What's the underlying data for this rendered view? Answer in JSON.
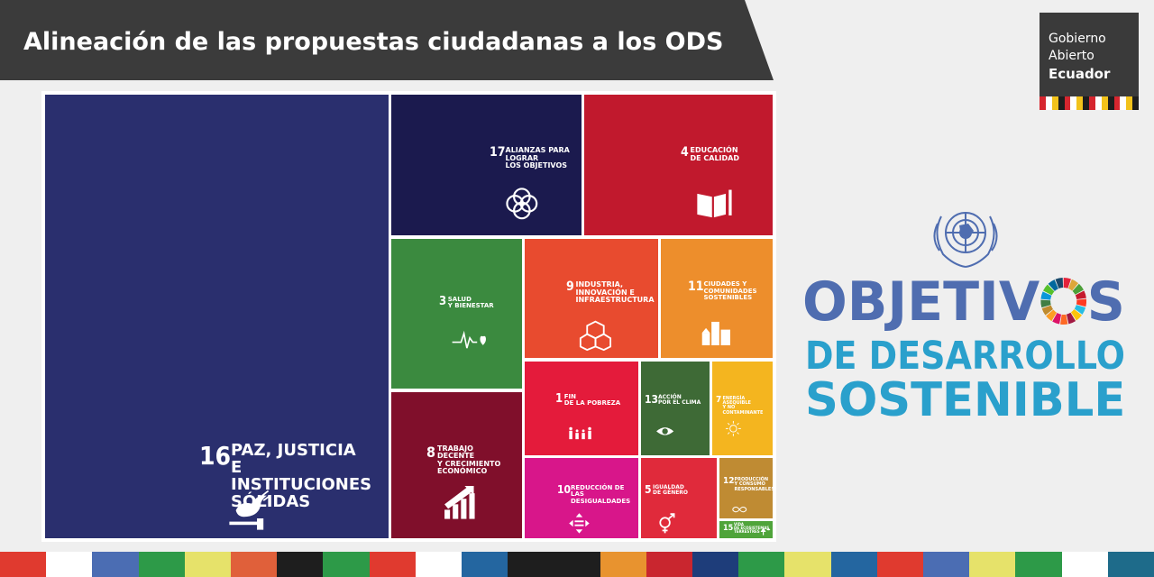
{
  "header": {
    "title": "Alineación de las propuestas ciudadanas a los ODS"
  },
  "logo": {
    "line1": "Gobierno",
    "line2": "Abierto",
    "line3": "Ecuador",
    "stripe_colors": [
      "#d6262f",
      "#ffffff",
      "#f2c21b",
      "#1e1e1e",
      "#d6262f",
      "#ffffff",
      "#f2c21b",
      "#1e1e1e",
      "#d6262f",
      "#ffffff",
      "#f2c21b",
      "#1e1e1e",
      "#d6262f",
      "#ffffff",
      "#f2c21b",
      "#1e1e1e"
    ]
  },
  "brand": {
    "line1_prefix": "OBJETIV",
    "line1_suffix": "S",
    "line2": "DE DESARROLLO",
    "line3": "SOSTENIBLE",
    "primary_color": "#4f6db0",
    "secondary_color": "#2aa0cc",
    "wheel_colors": [
      "#e5243b",
      "#dda63a",
      "#4c9f38",
      "#c5192d",
      "#ff3a21",
      "#26bde2",
      "#fcc30b",
      "#a21942",
      "#fd6925",
      "#dd1367",
      "#fd9d24",
      "#bf8b2e",
      "#3f7e44",
      "#0a97d9",
      "#56c02b",
      "#00689d",
      "#19486a"
    ]
  },
  "chart_data": {
    "type": "treemap",
    "tiles": [
      {
        "id": "t16",
        "number": "16",
        "label": "PAZ, JUSTICIA\nE INSTITUCIONES\nSÓLIDAS",
        "color": "#2a2f6e",
        "icon": "dove-gavel-icon"
      },
      {
        "id": "t17",
        "number": "17",
        "label": "ALIANZAS PARA\nLOGRAR\nLOS OBJETIVOS",
        "color": "#1b1a4e",
        "icon": "flower-rings-icon"
      },
      {
        "id": "t4",
        "number": "4",
        "label": "EDUCACIÓN\nDE CALIDAD",
        "color": "#c1192d",
        "icon": "book-pencil-icon"
      },
      {
        "id": "t3",
        "number": "3",
        "label": "SALUD\nY BIENESTAR",
        "color": "#3b8a3f",
        "icon": "heartbeat-icon"
      },
      {
        "id": "t9",
        "number": "9",
        "label": "INDUSTRIA,\nINNOVACIÓN E\nINFRAESTRUCTURA",
        "color": "#e84b2f",
        "icon": "cubes-icon"
      },
      {
        "id": "t11",
        "number": "11",
        "label": "CIUDADES Y\nCOMUNIDADES\nSOSTENIBLES",
        "color": "#ed8e2c",
        "icon": "city-icon"
      },
      {
        "id": "t8",
        "number": "8",
        "label": "TRABAJO DECENTE\nY CRECIMIENTO\nECONÓMICO",
        "color": "#800f2b",
        "icon": "growth-bars-icon"
      },
      {
        "id": "t1",
        "number": "1",
        "label": "FIN\nDE LA POBREZA",
        "color": "#e41b3b",
        "icon": "family-icon"
      },
      {
        "id": "t13",
        "number": "13",
        "label": "ACCIÓN\nPOR EL CLIMA",
        "color": "#3e6a36",
        "icon": "eye-globe-icon"
      },
      {
        "id": "t7",
        "number": "7",
        "label": "ENERGÍA ASEQUIBLE\nY NO CONTAMINANTE",
        "color": "#f4b51f",
        "icon": "sun-power-icon"
      },
      {
        "id": "t10",
        "number": "10",
        "label": "REDUCCIÓN DE LAS\nDESIGUALDADES",
        "color": "#d8168a",
        "icon": "equality-icon"
      },
      {
        "id": "t5",
        "number": "5",
        "label": "IGUALDAD\nDE GÉNERO",
        "color": "#e02a3b",
        "icon": "gender-icon"
      },
      {
        "id": "t12",
        "number": "12",
        "label": "PRODUCCIÓN\nY CONSUMO\nRESPONSABLES",
        "color": "#bf8b33",
        "icon": "infinity-icon"
      },
      {
        "id": "t15",
        "number": "15",
        "label": "VIDA\nDE ECOSISTEMAS\nTERRESTRES",
        "color": "#4fa43a",
        "icon": "tree-bird-icon"
      }
    ]
  },
  "footer": {
    "stripe_colors": [
      "#e03a2f",
      "#ffffff",
      "#4b6db3",
      "#2d9a48",
      "#e6e26a",
      "#e0603a",
      "#1e1e1e",
      "#2d9a48",
      "#e03a2f",
      "#ffffff",
      "#2466a0",
      "#1e1e1e",
      "#1e1e1e",
      "#e8932f",
      "#c9262f",
      "#1e3d7a",
      "#2d9a48",
      "#e6e26a",
      "#2466a0",
      "#e03a2f",
      "#4b6db3",
      "#e6e26a",
      "#2d9a48",
      "#ffffff",
      "#1e6b8a"
    ]
  }
}
